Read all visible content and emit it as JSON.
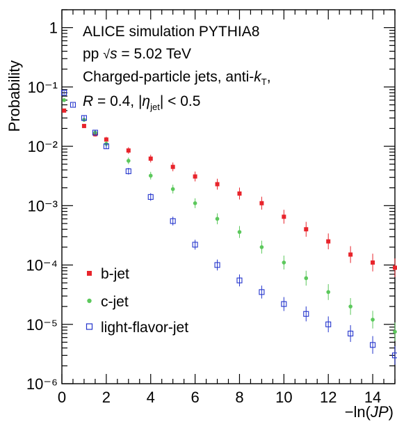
{
  "chart_data": {
    "type": "scatter",
    "xlabel": "−ln(JP)",
    "ylabel": "Probability",
    "x_range": [
      0,
      15
    ],
    "y_range": [
      1e-06,
      2
    ],
    "y_scale": "log",
    "grid": false,
    "legend_position": "bottom-left",
    "annotations": [
      "ALICE simulation PYTHIA8",
      "pp √s = 5.02 TeV",
      "Charged-particle jets, anti-kT,",
      "R = 0.4, |ηjet| < 0.5"
    ],
    "x_ticks": [
      0,
      2,
      4,
      6,
      8,
      10,
      12,
      14
    ],
    "y_ticks": [
      {
        "value": 1,
        "label": "1"
      },
      {
        "value": 0.1,
        "label": "10⁻¹"
      },
      {
        "value": 0.01,
        "label": "10⁻²"
      },
      {
        "value": 0.001,
        "label": "10⁻³"
      },
      {
        "value": 0.0001,
        "label": "10⁻⁴"
      },
      {
        "value": 1e-05,
        "label": "10⁻⁵"
      },
      {
        "value": 1e-06,
        "label": "10⁻⁶"
      }
    ],
    "series": [
      {
        "name": "b-jet",
        "color": "#e8242b",
        "marker": "filled-square",
        "x": [
          0.1,
          1.0,
          1.5,
          2.0,
          3.0,
          4.0,
          5.0,
          6.0,
          7.0,
          8.0,
          9.0,
          10.0,
          11.0,
          12.0,
          13.0,
          14.0,
          15.0
        ],
        "y": [
          0.04,
          0.022,
          0.016,
          0.013,
          0.0085,
          0.0062,
          0.0045,
          0.0031,
          0.0023,
          0.0016,
          0.0011,
          0.00065,
          0.0004,
          0.00025,
          0.00015,
          0.00011,
          9e-05
        ]
      },
      {
        "name": "c-jet",
        "color": "#5cc85c",
        "marker": "filled-circle",
        "x": [
          0.1,
          1.0,
          1.5,
          2.0,
          3.0,
          4.0,
          5.0,
          6.0,
          7.0,
          8.0,
          9.0,
          10.0,
          11.0,
          12.0,
          13.0,
          14.0,
          15.0
        ],
        "y": [
          0.06,
          0.028,
          0.017,
          0.011,
          0.0057,
          0.0032,
          0.0019,
          0.0011,
          0.0006,
          0.00036,
          0.0002,
          0.00011,
          6e-05,
          3.5e-05,
          2e-05,
          1.2e-05,
          7.5e-06
        ]
      },
      {
        "name": "light-flavor-jet",
        "color": "#2233cc",
        "marker": "open-square",
        "x": [
          0.1,
          0.5,
          1.0,
          1.5,
          2.0,
          3.0,
          4.0,
          5.0,
          6.0,
          7.0,
          8.0,
          9.0,
          10.0,
          11.0,
          12.0,
          13.0,
          14.0,
          15.0
        ],
        "y": [
          0.08,
          0.05,
          0.03,
          0.017,
          0.01,
          0.0038,
          0.0014,
          0.00055,
          0.00022,
          0.0001,
          5.5e-05,
          3.5e-05,
          2.2e-05,
          1.5e-05,
          1e-05,
          7e-06,
          4.5e-06,
          3e-06
        ]
      }
    ]
  }
}
